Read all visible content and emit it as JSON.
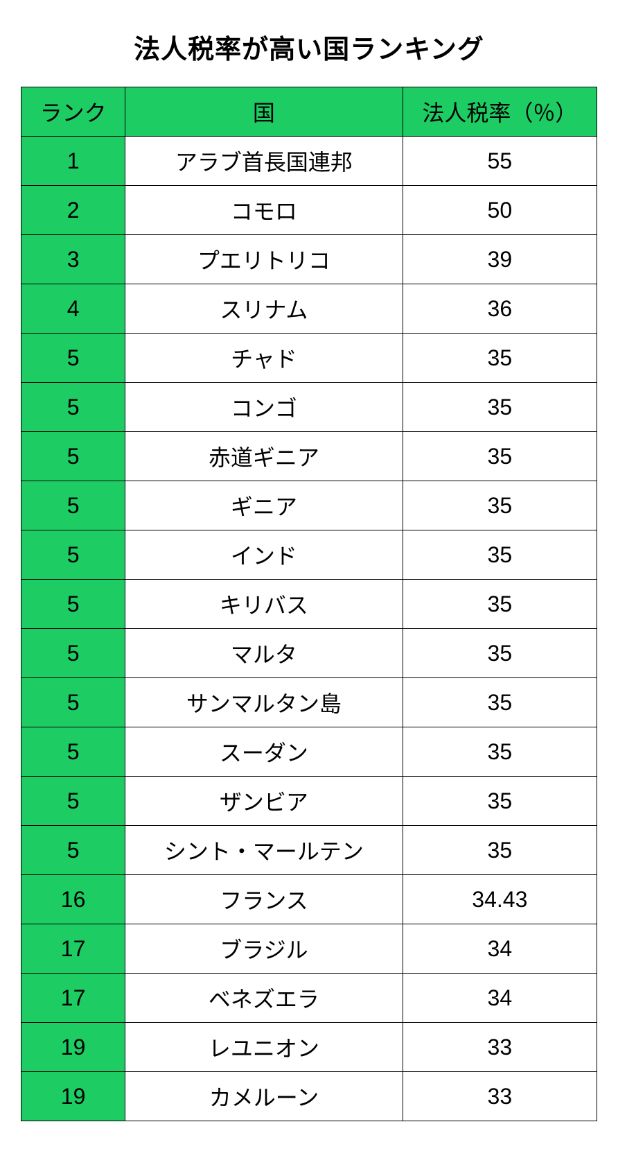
{
  "title": "法人税率が高い国ランキング",
  "table": {
    "columns": {
      "rank": "ランク",
      "country": "国",
      "rate": "法人税率（％）"
    },
    "rows": [
      {
        "rank": "1",
        "country": "アラブ首長国連邦",
        "rate": "55"
      },
      {
        "rank": "2",
        "country": "コモロ",
        "rate": "50"
      },
      {
        "rank": "3",
        "country": "プエリトリコ",
        "rate": "39"
      },
      {
        "rank": "4",
        "country": "スリナム",
        "rate": "36"
      },
      {
        "rank": "5",
        "country": "チャド",
        "rate": "35"
      },
      {
        "rank": "5",
        "country": "コンゴ",
        "rate": "35"
      },
      {
        "rank": "5",
        "country": "赤道ギニア",
        "rate": "35"
      },
      {
        "rank": "5",
        "country": "ギニア",
        "rate": "35"
      },
      {
        "rank": "5",
        "country": "インド",
        "rate": "35"
      },
      {
        "rank": "5",
        "country": "キリバス",
        "rate": "35"
      },
      {
        "rank": "5",
        "country": "マルタ",
        "rate": "35"
      },
      {
        "rank": "5",
        "country": "サンマルタン島",
        "rate": "35"
      },
      {
        "rank": "5",
        "country": "スーダン",
        "rate": "35"
      },
      {
        "rank": "5",
        "country": "ザンビア",
        "rate": "35"
      },
      {
        "rank": "5",
        "country": "シント・マールテン",
        "rate": "35"
      },
      {
        "rank": "16",
        "country": "フランス",
        "rate": "34.43"
      },
      {
        "rank": "17",
        "country": "ブラジル",
        "rate": "34"
      },
      {
        "rank": "17",
        "country": "ベネズエラ",
        "rate": "34"
      },
      {
        "rank": "19",
        "country": "レユニオン",
        "rate": "33"
      },
      {
        "rank": "19",
        "country": "カメルーン",
        "rate": "33"
      }
    ],
    "styling": {
      "header_bg_color": "#1dcc63",
      "rank_col_bg_color": "#1dcc63",
      "data_bg_color": "#ffffff",
      "border_color": "#000000",
      "text_color": "#000000",
      "title_fontsize": 38,
      "cell_fontsize": 32,
      "column_widths": {
        "rank": 150,
        "country": 400,
        "rate": 280
      }
    }
  }
}
